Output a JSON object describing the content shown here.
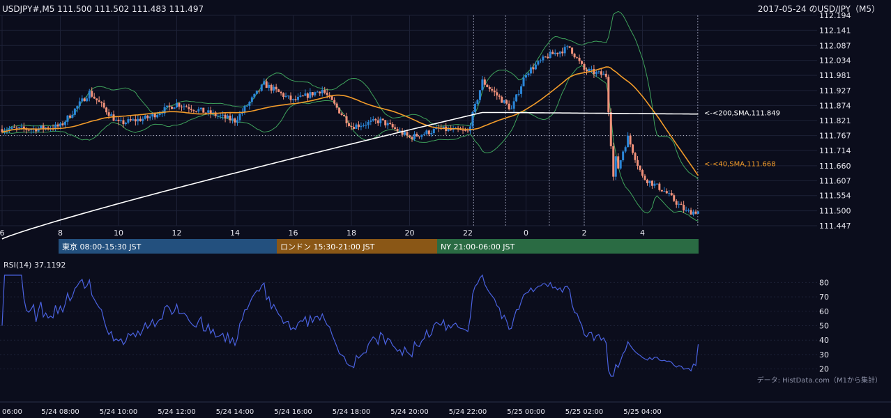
{
  "header": {
    "symbol_line": "USDJPY#,M5 111.500 111.502 111.483 111.497",
    "title_right": "2017-05-24 のUSD/JPY（M5）"
  },
  "sessions": [
    {
      "label": "東京 08:00-15:30 JST",
      "color": "#23507e"
    },
    {
      "label": "ロンドン 15:30-21:00 JST",
      "color": "#8a5716"
    },
    {
      "label": "NY 21:00-06:00 JST",
      "color": "#2a6b43"
    }
  ],
  "rsi_label": "RSI(14) 37.1192",
  "footer_credit": "データ: HistData.com（M1から集計）",
  "colors": {
    "background": "#0b0d1c",
    "bull": "#2b86d8",
    "bear": "#f0917a",
    "bands": "#3fa35c",
    "sma40": "#f39c2a",
    "sma200": "#ffffff",
    "rsi": "#4a62e0",
    "grid": "#1d2136"
  },
  "chart_data": [
    {
      "type": "candlestick",
      "title": "2017-05-24 のUSD/JPY（M5）",
      "y_ticks": [
        "112.194",
        "112.141",
        "112.087",
        "112.034",
        "111.981",
        "111.927",
        "111.874",
        "111.821",
        "111.767",
        "111.714",
        "111.660",
        "111.607",
        "111.554",
        "111.500",
        "111.447"
      ],
      "ylim": [
        111.447,
        112.194
      ],
      "x_ticks": [
        "6",
        "8",
        "10",
        "12",
        "14",
        "16",
        "18",
        "20",
        "22",
        "0",
        "2",
        "4"
      ],
      "bottom_ticks": [
        "06:00",
        "5/24 08:00",
        "5/24 10:00",
        "5/24 12:00",
        "5/24 14:00",
        "5/24 16:00",
        "5/24 18:00",
        "5/24 20:00",
        "5/24 22:00",
        "5/25 00:00",
        "5/25 02:00",
        "5/25 04:00"
      ],
      "last_close": 111.497,
      "reference_level": 111.767,
      "closes_hourly": [
        {
          "t": "07:00",
          "c": 111.79
        },
        {
          "t": "08:00",
          "c": 111.8
        },
        {
          "t": "09:00",
          "c": 111.92
        },
        {
          "t": "10:00",
          "c": 111.81
        },
        {
          "t": "11:00",
          "c": 111.83
        },
        {
          "t": "12:00",
          "c": 111.88
        },
        {
          "t": "13:00",
          "c": 111.85
        },
        {
          "t": "14:00",
          "c": 111.82
        },
        {
          "t": "15:00",
          "c": 111.95
        },
        {
          "t": "16:00",
          "c": 111.89
        },
        {
          "t": "17:00",
          "c": 111.93
        },
        {
          "t": "18:00",
          "c": 111.8
        },
        {
          "t": "19:00",
          "c": 111.82
        },
        {
          "t": "20:00",
          "c": 111.76
        },
        {
          "t": "21:00",
          "c": 111.79
        },
        {
          "t": "22:00",
          "c": 111.78
        },
        {
          "t": "22:30",
          "c": 111.96
        },
        {
          "t": "23:30",
          "c": 111.86
        },
        {
          "t": "00:00",
          "c": 111.99
        },
        {
          "t": "00:45",
          "c": 112.05
        },
        {
          "t": "01:30",
          "c": 112.08
        },
        {
          "t": "02:00",
          "c": 112.0
        },
        {
          "t": "02:45",
          "c": 111.98
        },
        {
          "t": "03:00",
          "c": 111.62
        },
        {
          "t": "03:30",
          "c": 111.76
        },
        {
          "t": "04:00",
          "c": 111.62
        },
        {
          "t": "04:45",
          "c": 111.57
        },
        {
          "t": "05:30",
          "c": 111.497
        }
      ],
      "series": [
        {
          "name": "<-<200,SMA,111.849",
          "last": 111.849
        },
        {
          "name": "<-<40,SMA,111.668",
          "last": 111.668
        }
      ]
    },
    {
      "type": "line",
      "title": "RSI(14) 37.1192",
      "y_ticks": [
        "80",
        "70",
        "60",
        "50",
        "40",
        "30",
        "20"
      ],
      "ylim": [
        15,
        85
      ],
      "last": 37.1192
    }
  ]
}
